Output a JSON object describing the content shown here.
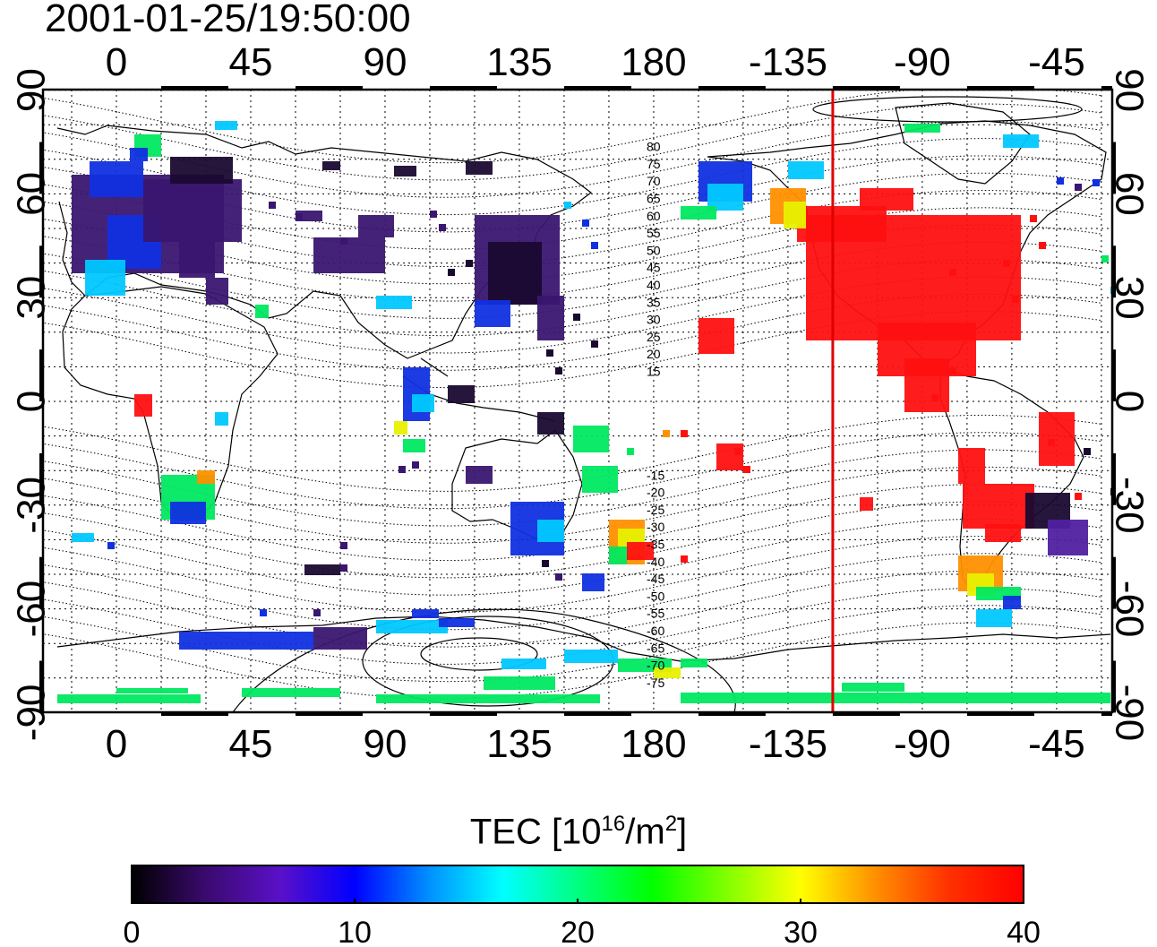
{
  "title": "2001-01-25/19:50:00",
  "map": {
    "top_lon_labels": [
      "0",
      "45",
      "90",
      "135",
      "180",
      "-135",
      "-90",
      "-45"
    ],
    "bottom_lon_labels": [
      "0",
      "45",
      "90",
      "135",
      "180",
      "-135",
      "-90",
      "-45"
    ],
    "lat_labels": [
      "90",
      "60",
      "30",
      "0",
      "-30",
      "-60",
      "-90"
    ],
    "terminator_lon": -120,
    "terminator_color": "#e00000",
    "magnetic_lat_labels": [
      "80",
      "75",
      "70",
      "65",
      "60",
      "55",
      "50",
      "45",
      "40",
      "35",
      "30",
      "25",
      "20",
      "15",
      "-15",
      "-20",
      "-25",
      "-30",
      "-35",
      "-40",
      "-45",
      "-50",
      "-55",
      "-60",
      "-65",
      "-70",
      "-75"
    ]
  },
  "colorbar": {
    "title_main": "TEC  [10",
    "title_exp1": "16",
    "title_mid": "/m",
    "title_exp2": "2",
    "title_end": "]",
    "min": 0,
    "max": 40,
    "tick_labels": [
      "0",
      "10",
      "20",
      "30",
      "40"
    ],
    "stops": [
      "#000000",
      "#3a0a6e",
      "#5a10c8",
      "#0000ff",
      "#0090ff",
      "#00ffff",
      "#00ff80",
      "#00ff00",
      "#80ff00",
      "#ffff00",
      "#ff9000",
      "#ff3000",
      "#ff0000"
    ]
  }
}
